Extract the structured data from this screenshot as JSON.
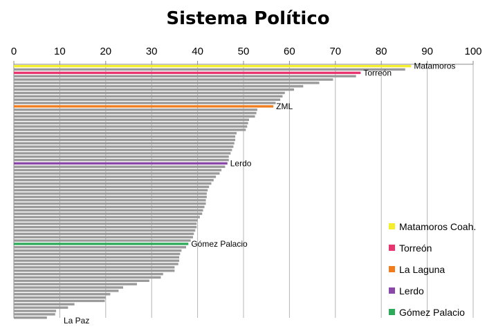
{
  "chart_data": {
    "type": "bar",
    "orientation": "horizontal",
    "title": "Sistema Político",
    "xlim": [
      0,
      100
    ],
    "xticks": [
      0,
      10,
      20,
      30,
      40,
      50,
      60,
      70,
      80,
      90,
      100
    ],
    "grid": true,
    "legend_position": "bottom-right",
    "values": [
      86.5,
      85.2,
      75.5,
      74.5,
      69.5,
      66.5,
      63,
      61,
      59,
      58.5,
      58,
      57,
      56.5,
      53,
      52.8,
      52.5,
      51.2,
      51,
      50.8,
      50.5,
      48.5,
      48.2,
      48.2,
      48,
      47.8,
      47.5,
      47.2,
      46.8,
      46.8,
      46.5,
      46,
      45.2,
      44.8,
      44,
      43.5,
      43,
      42.5,
      42.2,
      42,
      42,
      41.8,
      41.8,
      41.5,
      41.2,
      41,
      40.5,
      40,
      39.8,
      39.8,
      39.5,
      39.2,
      39,
      38.5,
      38,
      37.5,
      36.5,
      36.2,
      36,
      36,
      35.8,
      35,
      35,
      32.5,
      32,
      29.5,
      26.8,
      23.8,
      22.8,
      21,
      20,
      19.8,
      13.2,
      11.8,
      9.2,
      9,
      7.2
    ],
    "highlights": [
      {
        "index": 0,
        "label": "Matamoros",
        "color": "#f5ee2f"
      },
      {
        "index": 2,
        "label": "Torreón",
        "color": "#e8356f"
      },
      {
        "index": 12,
        "label": "ZML",
        "color": "#f07c1e"
      },
      {
        "index": 29,
        "label": "Lerdo",
        "color": "#8a48a8"
      },
      {
        "index": 53,
        "label": "Gómez Palacio",
        "color": "#2eab5a"
      }
    ],
    "end_label": {
      "index": 75,
      "label": "La Paz"
    },
    "default_color": "#9a9a9a",
    "legend": [
      {
        "label": "Matamoros Coah.",
        "color": "#f5ee2f"
      },
      {
        "label": "Torreón",
        "color": "#e8356f"
      },
      {
        "label": "La Laguna",
        "color": "#f07c1e"
      },
      {
        "label": "Lerdo",
        "color": "#8a48a8"
      },
      {
        "label": "Gómez Palacio",
        "color": "#2eab5a"
      }
    ]
  }
}
